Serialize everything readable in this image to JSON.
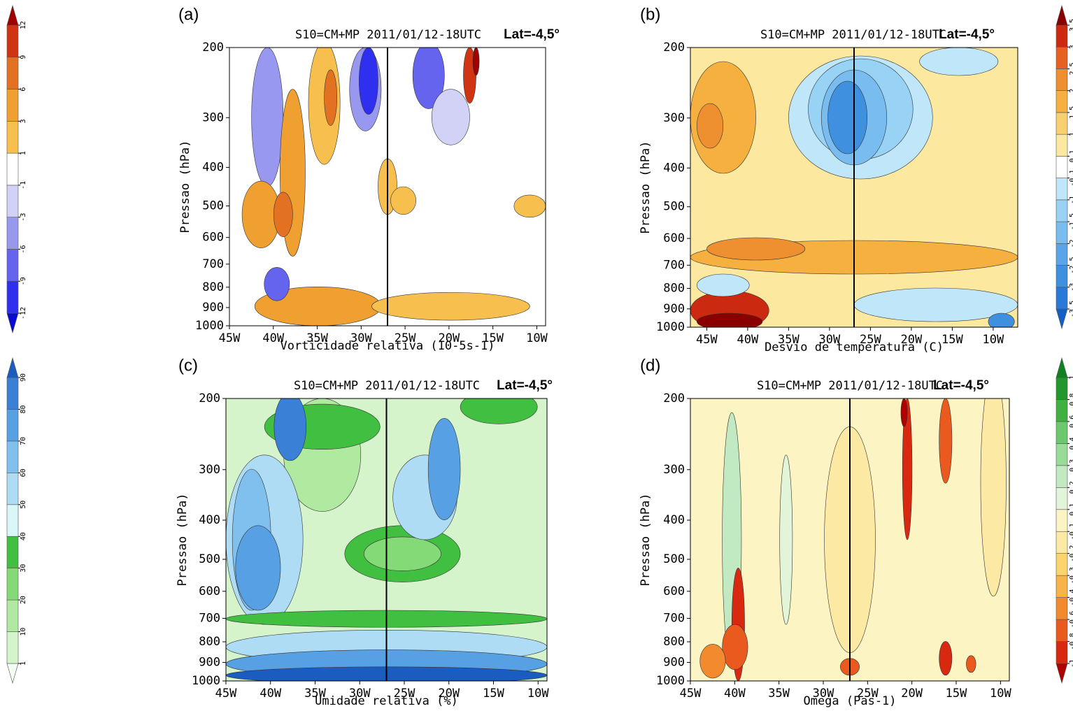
{
  "chart_data": [
    {
      "type": "contour",
      "panel_label": "(a)",
      "title": "S10=CM+MP 2011/01/12-18UTC",
      "annotation": "Lat=-4,5°",
      "x_label": "Vorticidade relativa (10-5s-1)",
      "y_label": "Pressao (hPa)",
      "xlim": [
        -45,
        -9
      ],
      "xticks": [
        {
          "value": -45,
          "label": "45W"
        },
        {
          "value": -40,
          "label": "40W"
        },
        {
          "value": -35,
          "label": "35W"
        },
        {
          "value": -30,
          "label": "30W"
        },
        {
          "value": -25,
          "label": "25W"
        },
        {
          "value": -20,
          "label": "20W"
        },
        {
          "value": -15,
          "label": "15W"
        },
        {
          "value": -10,
          "label": "10W"
        }
      ],
      "ylim": [
        1000,
        200
      ],
      "yticks": [
        200,
        300,
        400,
        500,
        600,
        700,
        800,
        900,
        1000
      ],
      "log_y": true,
      "reference_x": -27,
      "colorbar": {
        "side": "left",
        "levels": [
          -12,
          -9,
          -6,
          -3,
          -1,
          1,
          3,
          6,
          9,
          12
        ],
        "colors": [
          "#0a0ad0",
          "#2f2ff0",
          "#6464ee",
          "#9898f0",
          "#d2d2f6",
          "#ffffff",
          "#f6bf4e",
          "#f0a030",
          "#e27222",
          "#d03412",
          "#a00000"
        ]
      }
    },
    {
      "type": "contour",
      "panel_label": "(b)",
      "title": "S10=CM+MP 2011/01/12-18UTC",
      "annotation": "Lat=-4,5°",
      "x_label": "Desvio de temperatura (C)",
      "y_label": "Pressao (hPa)",
      "xlim": [
        -47,
        -7
      ],
      "xticks": [
        {
          "value": -45,
          "label": "45W"
        },
        {
          "value": -40,
          "label": "40W"
        },
        {
          "value": -35,
          "label": "35W"
        },
        {
          "value": -30,
          "label": "30W"
        },
        {
          "value": -25,
          "label": "25W"
        },
        {
          "value": -20,
          "label": "20W"
        },
        {
          "value": -15,
          "label": "15W"
        },
        {
          "value": -10,
          "label": "10W"
        }
      ],
      "ylim": [
        1000,
        200
      ],
      "yticks": [
        200,
        300,
        400,
        500,
        600,
        700,
        800,
        900,
        1000
      ],
      "log_y": true,
      "reference_x": -27,
      "colorbar": {
        "side": "right",
        "levels": [
          -3.5,
          -3,
          -2.5,
          -2,
          -1.5,
          -1,
          -0.1,
          0.1,
          1,
          1.5,
          2,
          2.5,
          3,
          3.5
        ],
        "colors": [
          "#1060c8",
          "#2a78d8",
          "#4090e0",
          "#5aa5e8",
          "#78bcf0",
          "#98d2f5",
          "#c0e6fa",
          "#ffffff",
          "#fde8a0",
          "#f9d070",
          "#f5b040",
          "#ef9030",
          "#e66020",
          "#cc2a10",
          "#8a0000"
        ]
      }
    },
    {
      "type": "contour",
      "panel_label": "(c)",
      "title": "S10=CM+MP 2011/01/12-18UTC",
      "annotation": "Lat=-4,5°",
      "x_label": "Umidade relativa (%)",
      "y_label": "Pressao (hPa)",
      "xlim": [
        -45,
        -9
      ],
      "xticks": [
        {
          "value": -45,
          "label": "45W"
        },
        {
          "value": -40,
          "label": "40W"
        },
        {
          "value": -35,
          "label": "35W"
        },
        {
          "value": -30,
          "label": "30W"
        },
        {
          "value": -25,
          "label": "25W"
        },
        {
          "value": -20,
          "label": "20W"
        },
        {
          "value": -15,
          "label": "15W"
        },
        {
          "value": -10,
          "label": "10W"
        }
      ],
      "ylim": [
        1000,
        200
      ],
      "yticks": [
        200,
        300,
        400,
        500,
        600,
        700,
        800,
        900,
        1000
      ],
      "log_y": true,
      "reference_x": -27,
      "colorbar": {
        "side": "left",
        "levels": [
          1,
          10,
          20,
          30,
          40,
          50,
          60,
          70,
          80,
          90
        ],
        "colors": [
          "#f2fff2",
          "#d6f4cc",
          "#b0e9a0",
          "#84da76",
          "#40bf40",
          "#daf6f6",
          "#aedcf5",
          "#80c0ef",
          "#58a0e4",
          "#3a80d6",
          "#1a5cc0"
        ]
      }
    },
    {
      "type": "contour",
      "panel_label": "(d)",
      "title": "S10=CM+MP 2011/01/12-18UTC",
      "annotation": "Lat=-4,5°",
      "x_label": "Omega (Pas-1)",
      "y_label": "Pressao (hPa)",
      "xlim": [
        -45,
        -9
      ],
      "xticks": [
        {
          "value": -45,
          "label": "45W"
        },
        {
          "value": -40,
          "label": "40W"
        },
        {
          "value": -35,
          "label": "35W"
        },
        {
          "value": -30,
          "label": "30W"
        },
        {
          "value": -25,
          "label": "25W"
        },
        {
          "value": -20,
          "label": "20W"
        },
        {
          "value": -15,
          "label": "15W"
        },
        {
          "value": -10,
          "label": "10W"
        }
      ],
      "ylim": [
        1000,
        200
      ],
      "yticks": [
        200,
        300,
        400,
        500,
        600,
        700,
        800,
        900,
        1000
      ],
      "log_y": true,
      "reference_x": -27,
      "colorbar": {
        "side": "right",
        "levels": [
          -1,
          -0.8,
          -0.6,
          -0.4,
          -0.3,
          -0.2,
          -0.1,
          0.1,
          0.2,
          0.3,
          0.4,
          0.6,
          0.8,
          1
        ],
        "colors": [
          "#b00000",
          "#d82810",
          "#ea5a1e",
          "#f48a2e",
          "#f8b448",
          "#fbd46e",
          "#fce9a4",
          "#fdf4c4",
          "#e2f5d8",
          "#c2eac2",
          "#98dc98",
          "#6cc86c",
          "#40b040",
          "#22982c",
          "#108020"
        ]
      }
    }
  ]
}
